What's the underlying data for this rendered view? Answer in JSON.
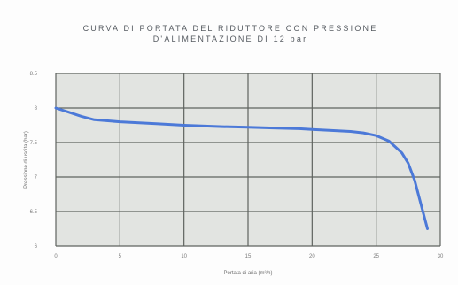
{
  "chart_data": {
    "type": "line",
    "title": "CURVA DI PORTATA DEL RIDUTTORE CON PRESSIONE",
    "subtitle": "D'ALIMENTAZIONE DI 12 bar",
    "xlabel": "Portata di aria (m³/h)",
    "ylabel": "Pressione di uscita (bar)",
    "xlim": [
      0,
      30
    ],
    "ylim": [
      6,
      8.5
    ],
    "xticks": [
      "0",
      "5",
      "10",
      "15",
      "20",
      "25",
      "30"
    ],
    "yticks": [
      "6",
      "6.5",
      "7",
      "7.5",
      "8",
      "8.5"
    ],
    "grid": true,
    "plot_background": "#e2e4e1",
    "grid_color": "#5f635f",
    "line_color": "#4c79d8",
    "series": [
      {
        "x": [
          0,
          1,
          2,
          3,
          5,
          8,
          10,
          13,
          15,
          17,
          19,
          20,
          21,
          22,
          23,
          24,
          25,
          26,
          27,
          27.5,
          28,
          28.5,
          29
        ],
        "y": [
          8.0,
          7.94,
          7.88,
          7.83,
          7.8,
          7.77,
          7.75,
          7.73,
          7.72,
          7.71,
          7.7,
          7.69,
          7.68,
          7.67,
          7.66,
          7.64,
          7.6,
          7.52,
          7.35,
          7.2,
          6.95,
          6.6,
          6.25
        ]
      }
    ]
  }
}
